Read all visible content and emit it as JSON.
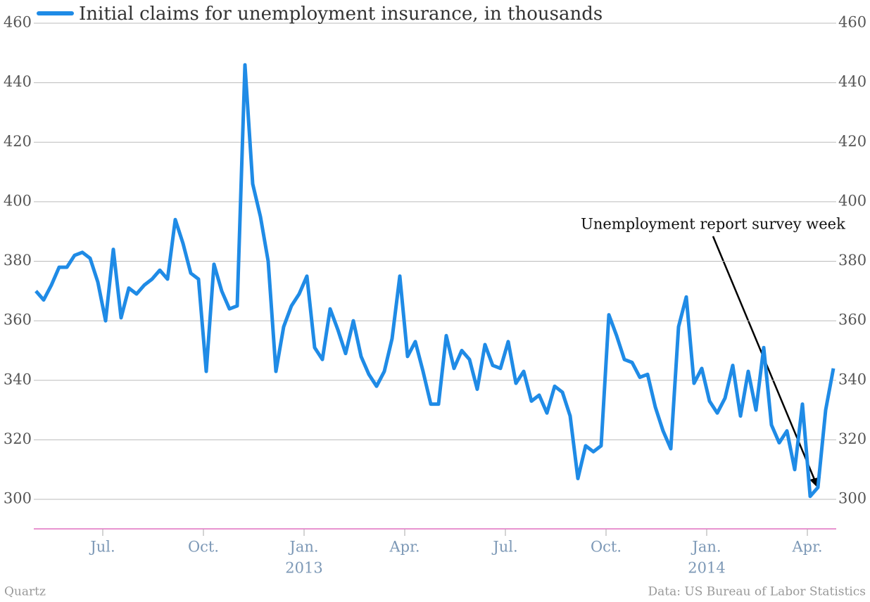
{
  "chart_data": {
    "type": "line",
    "series": [
      {
        "name": "Initial claims for unemployment insurance, in thousands",
        "color": "#1f8be6",
        "values": [
          370,
          367,
          372,
          378,
          378,
          382,
          383,
          381,
          373,
          360,
          384,
          361,
          371,
          369,
          372,
          374,
          377,
          374,
          394,
          386,
          376,
          374,
          343,
          379,
          370,
          364,
          365,
          446,
          406,
          395,
          380,
          343,
          358,
          365,
          369,
          375,
          351,
          347,
          364,
          357,
          349,
          360,
          348,
          342,
          338,
          343,
          354,
          375,
          348,
          353,
          343,
          332,
          332,
          355,
          344,
          350,
          347,
          337,
          352,
          345,
          344,
          353,
          339,
          343,
          333,
          335,
          329,
          338,
          336,
          328,
          307,
          318,
          316,
          318,
          362,
          355,
          347,
          346,
          341,
          342,
          331,
          323,
          317,
          358,
          368,
          339,
          344,
          333,
          329,
          334,
          345,
          328,
          343,
          330,
          351,
          325,
          319,
          323,
          310,
          332,
          301,
          304,
          330,
          344
        ]
      }
    ],
    "categories": [
      null,
      null,
      null,
      null,
      null,
      null,
      null,
      null,
      null,
      "Jul.",
      null,
      null,
      null,
      null,
      null,
      null,
      null,
      null,
      null,
      null,
      null,
      null,
      "Oct.",
      null,
      null,
      null,
      null,
      null,
      null,
      null,
      null,
      null,
      null,
      null,
      null,
      "Jan.",
      null,
      null,
      null,
      null,
      null,
      null,
      null,
      null,
      null,
      null,
      null,
      null,
      "Apr.",
      null,
      null,
      null,
      null,
      null,
      null,
      null,
      null,
      null,
      null,
      null,
      null,
      "Jul.",
      null,
      null,
      null,
      null,
      null,
      null,
      null,
      null,
      null,
      null,
      null,
      null,
      "Oct.",
      null,
      null,
      null,
      null,
      null,
      null,
      null,
      null,
      null,
      null,
      null,
      null,
      "Jan.",
      null,
      null,
      null,
      null,
      null,
      null,
      null,
      null,
      null,
      null,
      null,
      null,
      "Apr.",
      null,
      null,
      null
    ],
    "years": [
      null,
      null,
      null,
      null,
      null,
      null,
      null,
      null,
      null,
      null,
      null,
      null,
      null,
      null,
      null,
      null,
      null,
      null,
      null,
      null,
      null,
      null,
      null,
      null,
      null,
      null,
      null,
      null,
      null,
      null,
      null,
      null,
      null,
      null,
      null,
      "2013",
      null,
      null,
      null,
      null,
      null,
      null,
      null,
      null,
      null,
      null,
      null,
      null,
      null,
      null,
      null,
      null,
      null,
      null,
      null,
      null,
      null,
      null,
      null,
      null,
      null,
      null,
      null,
      null,
      null,
      null,
      null,
      null,
      null,
      null,
      null,
      null,
      null,
      null,
      null,
      null,
      null,
      null,
      null,
      null,
      null,
      null,
      null,
      null,
      null,
      null,
      null,
      "2014",
      null,
      null,
      null,
      null,
      null,
      null,
      null,
      null,
      null,
      null,
      null,
      null,
      null,
      null,
      null,
      null
    ],
    "ylim": [
      290,
      460
    ],
    "yticks": [
      300,
      320,
      340,
      360,
      380,
      400,
      420,
      440,
      460
    ],
    "grid": true,
    "annotation": "Unemployment report survey week",
    "source": "Data: US Bureau of Labor Statistics",
    "credit": "Quartz"
  }
}
